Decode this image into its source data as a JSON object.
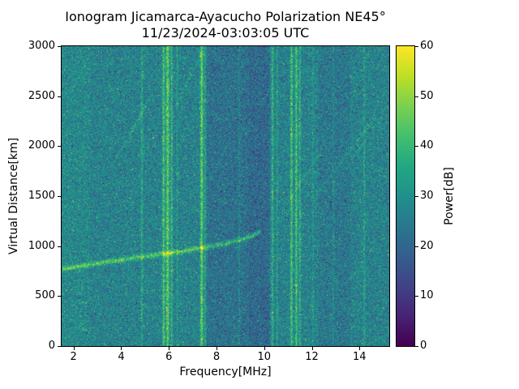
{
  "chart_data": {
    "type": "heatmap",
    "title": "Ionogram Jicamarca-Ayacucho Polarization NE45°",
    "subtitle": "11/23/2024-03:03:05 UTC",
    "xlabel": "Frequency[MHz]",
    "ylabel": "Virtual Distance[km]",
    "colorbar_label": "Power[dB]",
    "xlim": [
      1.5,
      15.25
    ],
    "ylim": [
      0,
      3000
    ],
    "power_range_db": [
      0,
      60
    ],
    "x_ticks": [
      2,
      4,
      6,
      8,
      10,
      12,
      14
    ],
    "y_ticks": [
      0,
      500,
      1000,
      1500,
      2000,
      2500,
      3000
    ],
    "colorbar_ticks": [
      0,
      10,
      20,
      30,
      40,
      50,
      60
    ],
    "colormap": "viridis",
    "colormap_stops": [
      [
        0.0,
        "#440154"
      ],
      [
        0.1,
        "#482475"
      ],
      [
        0.2,
        "#414487"
      ],
      [
        0.3,
        "#355f8d"
      ],
      [
        0.4,
        "#2a788e"
      ],
      [
        0.5,
        "#21918c"
      ],
      [
        0.6,
        "#22a884"
      ],
      [
        0.7,
        "#44bf70"
      ],
      [
        0.8,
        "#7ad151"
      ],
      [
        0.9,
        "#bddf26"
      ],
      [
        1.0,
        "#fde725"
      ]
    ],
    "noise_background": {
      "base_power_db": 26.5,
      "noise_std_db": 5,
      "low_freq_boost_db": 1.5,
      "dark_bands": [
        {
          "range_mhz": [
            7.6,
            10.25
          ],
          "depth_db": 4
        },
        {
          "range_mhz": [
            9.35,
            10.2
          ],
          "depth_db": 2
        },
        {
          "range_mhz": [
            12.3,
            13.6
          ],
          "depth_db": 2.5
        }
      ]
    },
    "rfi_lines": [
      {
        "freq_mhz": 4.87,
        "width_mhz": 0.04,
        "excess_db": 9
      },
      {
        "freq_mhz": 5.78,
        "width_mhz": 0.05,
        "excess_db": 16
      },
      {
        "freq_mhz": 5.95,
        "width_mhz": 0.07,
        "excess_db": 19
      },
      {
        "freq_mhz": 6.12,
        "width_mhz": 0.04,
        "excess_db": 13
      },
      {
        "freq_mhz": 6.35,
        "width_mhz": 0.03,
        "excess_db": 7
      },
      {
        "freq_mhz": 7.38,
        "width_mhz": 0.06,
        "excess_db": 19
      },
      {
        "freq_mhz": 7.52,
        "width_mhz": 0.03,
        "excess_db": 9
      },
      {
        "freq_mhz": 8.95,
        "width_mhz": 0.03,
        "excess_db": 5
      },
      {
        "freq_mhz": 10.35,
        "width_mhz": 0.04,
        "excess_db": 12
      },
      {
        "freq_mhz": 10.55,
        "width_mhz": 0.03,
        "excess_db": 8
      },
      {
        "freq_mhz": 11.15,
        "width_mhz": 0.05,
        "excess_db": 16
      },
      {
        "freq_mhz": 11.35,
        "width_mhz": 0.05,
        "excess_db": 16
      },
      {
        "freq_mhz": 11.5,
        "width_mhz": 0.04,
        "excess_db": 12
      },
      {
        "freq_mhz": 12.05,
        "width_mhz": 0.03,
        "excess_db": 6
      },
      {
        "freq_mhz": 12.9,
        "width_mhz": 0.03,
        "excess_db": 5
      },
      {
        "freq_mhz": 14.2,
        "width_mhz": 0.04,
        "excess_db": 7
      }
    ],
    "echo_trace": {
      "points_mhz_km": [
        [
          1.55,
          772
        ],
        [
          2.5,
          806
        ],
        [
          3.5,
          845
        ],
        [
          4.5,
          880
        ],
        [
          5.5,
          912
        ],
        [
          6.5,
          945
        ],
        [
          7.2,
          975
        ],
        [
          7.8,
          1000
        ],
        [
          8.4,
          1028
        ],
        [
          9.0,
          1062
        ],
        [
          9.5,
          1102
        ],
        [
          9.85,
          1150
        ]
      ],
      "peak_power_db": 44,
      "thickness_km": 24
    },
    "streaks": [
      {
        "from": [
          1.85,
          2520
        ],
        "to": [
          2.7,
          2920
        ],
        "excess_db": 5
      },
      {
        "from": [
          3.55,
          1780
        ],
        "to": [
          5.05,
          2400
        ],
        "excess_db": 6
      },
      {
        "from": [
          4.35,
          2120
        ],
        "to": [
          5.2,
          2480
        ],
        "excess_db": 5
      },
      {
        "from": [
          6.25,
          2380
        ],
        "to": [
          7.4,
          2930
        ],
        "excess_db": 6
      },
      {
        "from": [
          7.7,
          1640
        ],
        "to": [
          8.5,
          2030
        ],
        "excess_db": 4
      },
      {
        "from": [
          9.2,
          2100
        ],
        "to": [
          10.4,
          2650
        ],
        "excess_db": 5
      },
      {
        "from": [
          10.75,
          1350
        ],
        "to": [
          12.4,
          1950
        ],
        "excess_db": 6
      },
      {
        "from": [
          12.15,
          1500
        ],
        "to": [
          14.7,
          2300
        ],
        "excess_db": 6
      },
      {
        "from": [
          13.3,
          1750
        ],
        "to": [
          14.95,
          2290
        ],
        "excess_db": 5
      }
    ]
  }
}
